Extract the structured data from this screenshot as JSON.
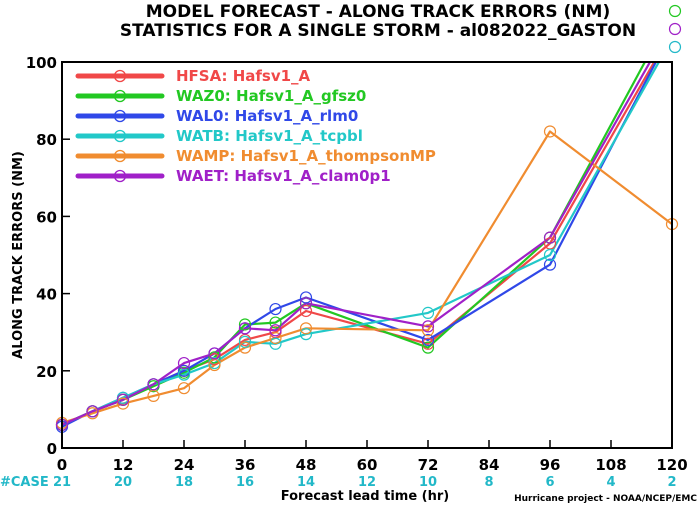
{
  "chart_data": {
    "type": "line",
    "title": "MODEL FORECAST - ALONG TRACK ERRORS (NM)",
    "subtitle": "STATISTICS FOR A SINGLE STORM - al082022_GASTON",
    "xlabel": "Forecast lead time (hr)",
    "ylabel": "ALONG TRACK ERRORS (NM)",
    "xlim": [
      0,
      120
    ],
    "ylim": [
      0,
      100
    ],
    "x_ticks": [
      0,
      12,
      24,
      36,
      48,
      60,
      72,
      84,
      96,
      108,
      120
    ],
    "y_ticks": [
      0,
      20,
      40,
      60,
      80,
      100
    ],
    "legend_position": "top-left",
    "case_label": "#CASE",
    "case_counts": [
      {
        "x": 0,
        "label": "21"
      },
      {
        "x": 12,
        "label": "20"
      },
      {
        "x": 24,
        "label": "18"
      },
      {
        "x": 36,
        "label": "16"
      },
      {
        "x": 48,
        "label": "14"
      },
      {
        "x": 60,
        "label": "12"
      },
      {
        "x": 72,
        "label": "10"
      },
      {
        "x": 84,
        "label": "8"
      },
      {
        "x": 96,
        "label": "6"
      },
      {
        "x": 108,
        "label": "4"
      },
      {
        "x": 120,
        "label": "2"
      }
    ],
    "credit": "Hurricane project - NOAA/NCEP/EMC",
    "series": [
      {
        "name": "HFSA:  Hafsv1_A",
        "color": "#f04848",
        "x": [
          0,
          6,
          12,
          18,
          24,
          30,
          36,
          42,
          48,
          72,
          96,
          120
        ],
        "y": [
          6,
          9.5,
          12.5,
          16.5,
          20,
          23,
          28,
          30,
          35.5,
          27,
          53,
          108
        ],
        "markers": [
          0,
          6,
          12,
          18,
          24,
          30,
          36,
          42,
          48,
          72,
          96
        ]
      },
      {
        "name": "WAZ0:  Hafsv1_A_gfsz0",
        "color": "#22c822",
        "x": [
          0,
          6,
          12,
          18,
          24,
          30,
          36,
          42,
          48,
          72,
          96,
          120
        ],
        "y": [
          6,
          9.5,
          12.5,
          16,
          19.5,
          23.5,
          32,
          32.5,
          37.5,
          26,
          54.5,
          113
        ],
        "markers": [
          0,
          6,
          12,
          18,
          24,
          30,
          36,
          42,
          48,
          72,
          96
        ]
      },
      {
        "name": "WAL0:  Hafsv1_A_rlm0",
        "color": "#3048e8",
        "x": [
          0,
          6,
          12,
          18,
          24,
          30,
          36,
          42,
          48,
          72,
          96,
          120
        ],
        "y": [
          5.5,
          9.5,
          13,
          16.5,
          20,
          24.5,
          31,
          36,
          39,
          28,
          47.5,
          108
        ],
        "markers": [
          0,
          6,
          12,
          18,
          24,
          30,
          36,
          42,
          48,
          72,
          96
        ]
      },
      {
        "name": "WATB:  Hafsv1_A_tcpbl",
        "color": "#22c8c8",
        "x": [
          0,
          6,
          12,
          18,
          24,
          30,
          36,
          42,
          48,
          72,
          96,
          120
        ],
        "y": [
          6,
          9.5,
          13,
          16.5,
          19,
          22,
          27.5,
          27,
          29.5,
          35,
          50,
          106
        ],
        "markers": [
          0,
          6,
          12,
          18,
          24,
          30,
          36,
          42,
          48,
          72,
          96
        ]
      },
      {
        "name": "WAMP:  Hafsv1_A_thompsonMP",
        "color": "#f08c30",
        "x": [
          0,
          6,
          12,
          18,
          24,
          30,
          36,
          42,
          48,
          72,
          96,
          120
        ],
        "y": [
          6.5,
          9,
          11.5,
          13.5,
          15.5,
          21.5,
          26,
          28.5,
          31,
          30.5,
          82,
          58
        ],
        "markers": [
          0,
          6,
          12,
          18,
          24,
          30,
          36,
          42,
          48,
          72,
          96,
          120
        ]
      },
      {
        "name": "WAET:  Hafsv1_A_clam0p1",
        "color": "#a020c8",
        "x": [
          0,
          6,
          12,
          18,
          24,
          30,
          36,
          42,
          48,
          72,
          96,
          120
        ],
        "y": [
          6,
          9.5,
          12.5,
          16.5,
          22,
          24.5,
          31,
          30.5,
          37.5,
          31.5,
          54.5,
          110
        ],
        "markers": [
          0,
          6,
          12,
          18,
          24,
          30,
          36,
          42,
          48,
          72,
          96
        ]
      }
    ]
  }
}
